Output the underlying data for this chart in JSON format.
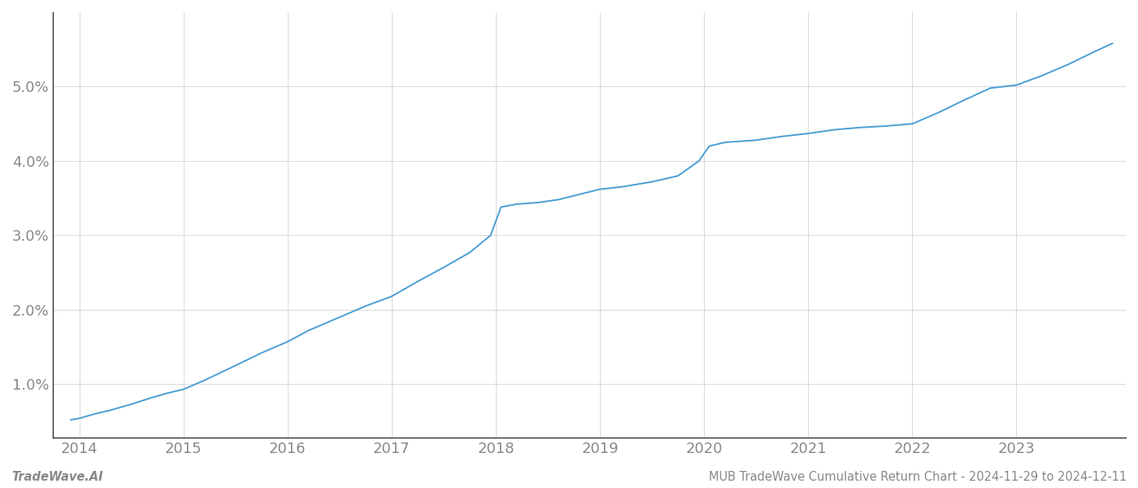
{
  "x_years": [
    2013.92,
    2014.0,
    2014.15,
    2014.3,
    2014.5,
    2014.7,
    2014.85,
    2015.0,
    2015.2,
    2015.5,
    2015.75,
    2016.0,
    2016.2,
    2016.5,
    2016.75,
    2017.0,
    2017.25,
    2017.5,
    2017.75,
    2017.95,
    2018.05,
    2018.2,
    2018.4,
    2018.6,
    2018.8,
    2019.0,
    2019.2,
    2019.5,
    2019.75,
    2019.95,
    2020.05,
    2020.2,
    2020.5,
    2020.75,
    2021.0,
    2021.25,
    2021.5,
    2021.75,
    2022.0,
    2022.25,
    2022.5,
    2022.75,
    2023.0,
    2023.25,
    2023.5,
    2023.75,
    2023.92
  ],
  "y_values": [
    0.52,
    0.54,
    0.6,
    0.65,
    0.73,
    0.82,
    0.88,
    0.93,
    1.05,
    1.25,
    1.42,
    1.57,
    1.72,
    1.9,
    2.05,
    2.18,
    2.38,
    2.57,
    2.77,
    3.0,
    3.38,
    3.42,
    3.44,
    3.48,
    3.55,
    3.62,
    3.65,
    3.72,
    3.8,
    4.0,
    4.2,
    4.25,
    4.28,
    4.33,
    4.37,
    4.42,
    4.45,
    4.47,
    4.5,
    4.65,
    4.82,
    4.98,
    5.02,
    5.15,
    5.3,
    5.47,
    5.58
  ],
  "line_color": "#4a9fd4",
  "line_width": 1.4,
  "background_color": "#ffffff",
  "grid_color": "#c8c8c8",
  "grid_linestyle": "-",
  "grid_alpha": 0.8,
  "grid_linewidth": 0.6,
  "yticks": [
    1.0,
    2.0,
    3.0,
    4.0,
    5.0
  ],
  "xticks": [
    2014,
    2015,
    2016,
    2017,
    2018,
    2019,
    2020,
    2021,
    2022,
    2023
  ],
  "xlim": [
    2013.75,
    2024.05
  ],
  "ylim": [
    0.28,
    6.0
  ],
  "watermark_left": "TradeWave.AI",
  "watermark_right": "MUB TradeWave Cumulative Return Chart - 2024-11-29 to 2024-12-11",
  "watermark_fontsize": 10.5,
  "watermark_color": "#888888",
  "tick_fontsize": 13,
  "tick_color": "#888888",
  "spine_color": "#333333"
}
